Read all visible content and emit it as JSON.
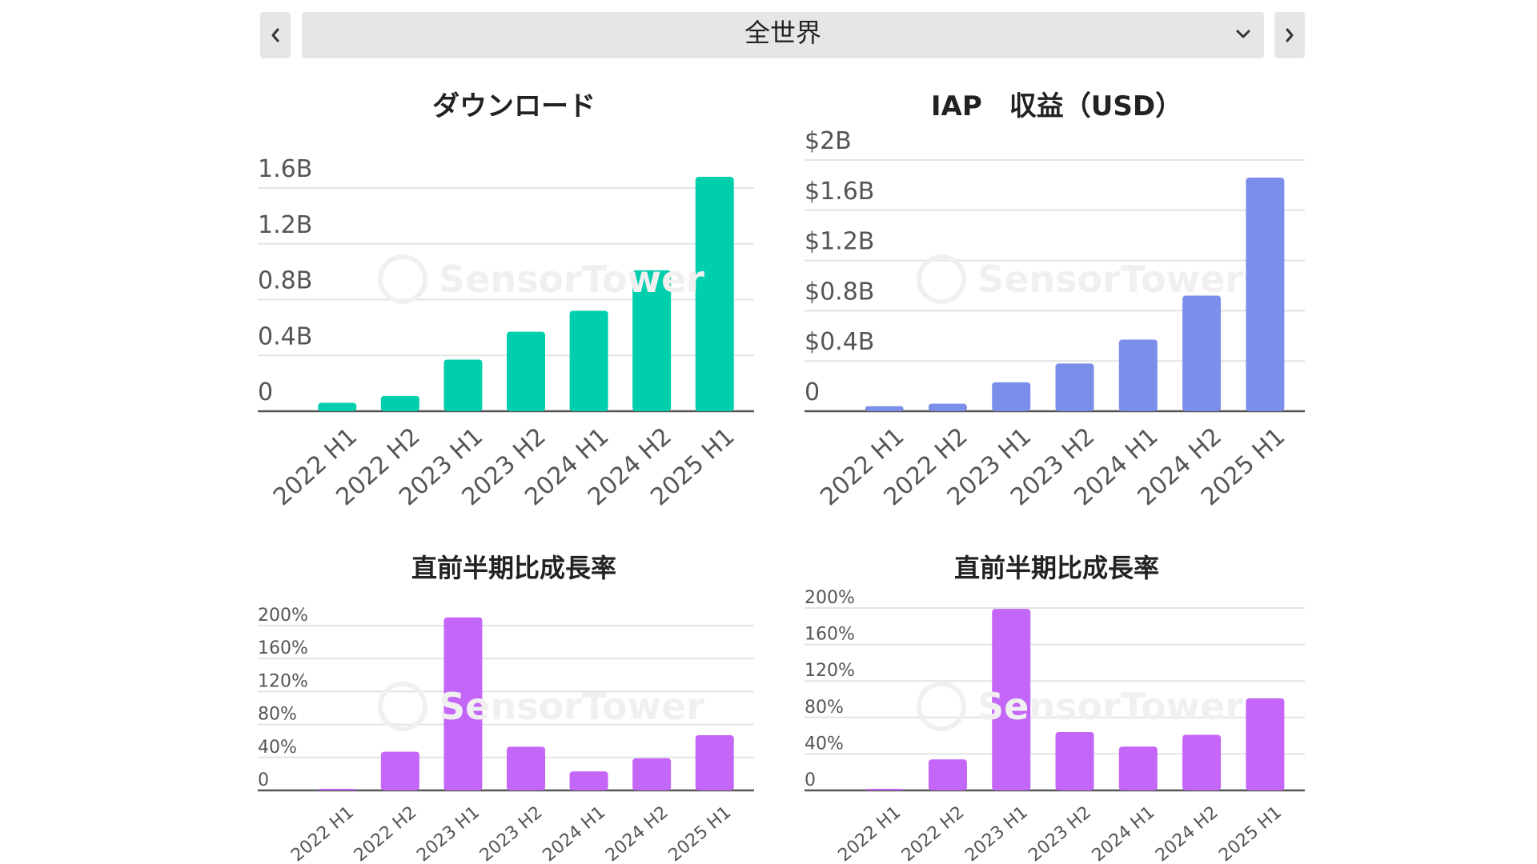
{
  "region_selector": {
    "selected": "全世界",
    "prev_icon": "chevron-left-icon",
    "next_icon": "chevron-right-icon",
    "dropdown_icon": "chevron-down-icon"
  },
  "watermark": "SensorTower",
  "chart_data": [
    {
      "id": "downloads",
      "type": "bar",
      "title": "ダウンロード",
      "categories": [
        "2022 H1",
        "2022 H2",
        "2023 H1",
        "2023 H2",
        "2024 H1",
        "2024 H2",
        "2025 H1"
      ],
      "values": [
        0.06,
        0.11,
        0.37,
        0.57,
        0.72,
        1.01,
        1.68
      ],
      "ytick_values": [
        0,
        0.4,
        0.8,
        1.2,
        1.6
      ],
      "ytick_labels": [
        "0",
        "0.4B",
        "0.8B",
        "1.2B",
        "1.6B"
      ],
      "ylim": [
        0,
        1.6
      ],
      "unit": "B",
      "color": "#00cfae",
      "grid": true
    },
    {
      "id": "iap_revenue",
      "type": "bar",
      "title": "IAP　収益（USD）",
      "categories": [
        "2022 H1",
        "2022 H2",
        "2023 H1",
        "2023 H2",
        "2024 H1",
        "2024 H2",
        "2025 H1"
      ],
      "values": [
        0.04,
        0.06,
        0.23,
        0.38,
        0.57,
        0.92,
        1.86
      ],
      "ytick_values": [
        0,
        0.4,
        0.8,
        1.2,
        1.6,
        2.0
      ],
      "ytick_labels": [
        "0",
        "$0.4B",
        "$0.8B",
        "$1.2B",
        "$1.6B",
        "$2B"
      ],
      "ylim": [
        0,
        2.0
      ],
      "unit": "USD B",
      "color": "#7b8fea",
      "grid": true
    },
    {
      "id": "downloads_growth",
      "type": "bar",
      "title": "直前半期比成長率",
      "categories": [
        "2022 H1",
        "2022 H2",
        "2023 H1",
        "2023 H2",
        "2024 H1",
        "2024 H2",
        "2025 H1"
      ],
      "values": [
        0,
        47,
        210,
        53,
        23,
        39,
        67
      ],
      "ytick_values": [
        0,
        40,
        80,
        120,
        160,
        200
      ],
      "ytick_labels": [
        "0",
        "40%",
        "80%",
        "120%",
        "160%",
        "200%"
      ],
      "ylim": [
        0,
        200
      ],
      "unit": "%",
      "color": "#c466f7",
      "grid": true
    },
    {
      "id": "iap_growth",
      "type": "bar",
      "title": "直前半期比成長率",
      "categories": [
        "2022 H1",
        "2022 H2",
        "2023 H1",
        "2023 H2",
        "2024 H1",
        "2024 H2",
        "2025 H1"
      ],
      "values": [
        0,
        34,
        199,
        64,
        48,
        61,
        101
      ],
      "ytick_values": [
        0,
        40,
        80,
        120,
        160,
        200
      ],
      "ytick_labels": [
        "0",
        "40%",
        "80%",
        "120%",
        "160%",
        "200%"
      ],
      "ylim": [
        0,
        200
      ],
      "unit": "%",
      "color": "#c466f7",
      "grid": true
    }
  ]
}
